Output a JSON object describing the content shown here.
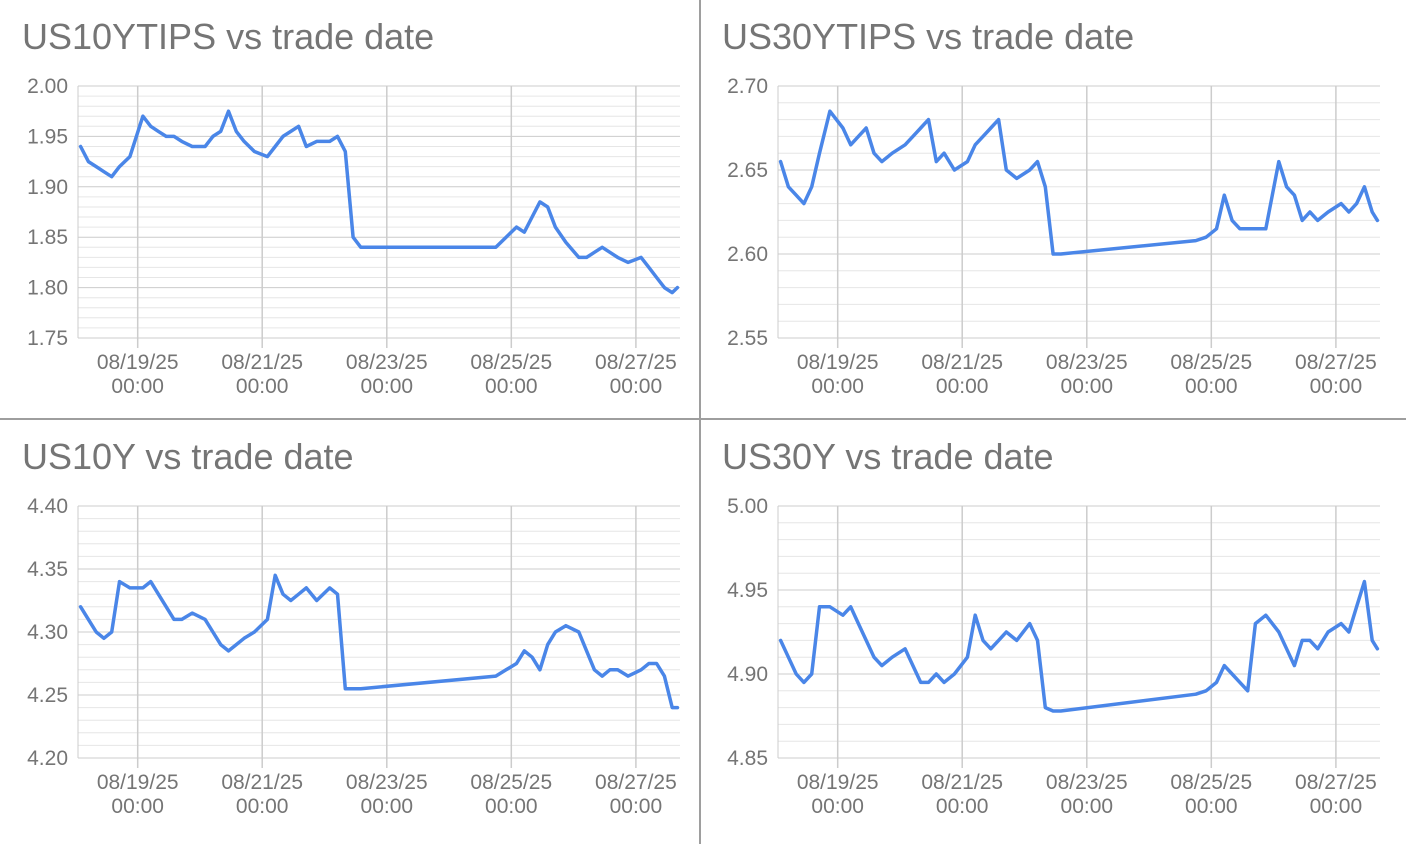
{
  "theme": {
    "line_color": "#4a86e8",
    "grid_major": "#cccccc",
    "grid_minor": "#e6e6e6",
    "text_color": "#757575",
    "divider": "#9e9e9e"
  },
  "chart_data": [
    {
      "type": "line",
      "title": "US10YTIPS vs trade date",
      "xlabel": "",
      "ylabel": "",
      "ylim": [
        1.75,
        2.0
      ],
      "yticks": [
        "2.00",
        "1.95",
        "1.90",
        "1.85",
        "1.80",
        "1.75"
      ],
      "xticks": [
        {
          "date": "08/19/25",
          "time": "00:00"
        },
        {
          "date": "08/21/25",
          "time": "00:00"
        },
        {
          "date": "08/23/25",
          "time": "00:00"
        },
        {
          "date": "08/25/25",
          "time": "00:00"
        },
        {
          "date": "08/27/25",
          "time": "00:00"
        }
      ],
      "xlim": [
        "08/18/25 01:00",
        "08/27/25 17:00"
      ],
      "grid": true,
      "series": [
        {
          "x": [
            "08/18/25 02:00",
            "08/18/25 05:00",
            "08/18/25 08:00",
            "08/18/25 11:00",
            "08/18/25 14:00",
            "08/18/25 17:00",
            "08/18/25 21:00",
            "08/19/25 02:00",
            "08/19/25 05:00",
            "08/19/25 08:00",
            "08/19/25 11:00",
            "08/19/25 14:00",
            "08/19/25 17:00",
            "08/19/25 21:00",
            "08/20/25 02:00",
            "08/20/25 05:00",
            "08/20/25 08:00",
            "08/20/25 11:00",
            "08/20/25 14:00",
            "08/20/25 17:00",
            "08/20/25 21:00",
            "08/21/25 02:00",
            "08/21/25 05:00",
            "08/21/25 08:00",
            "08/21/25 11:00",
            "08/21/25 14:00",
            "08/21/25 17:00",
            "08/21/25 21:00",
            "08/22/25 02:00",
            "08/22/25 05:00",
            "08/22/25 08:00",
            "08/22/25 11:00",
            "08/22/25 14:00",
            "08/24/25 18:00",
            "08/24/25 22:00",
            "08/25/25 02:00",
            "08/25/25 05:00",
            "08/25/25 08:00",
            "08/25/25 11:00",
            "08/25/25 14:00",
            "08/25/25 17:00",
            "08/25/25 21:00",
            "08/26/25 02:00",
            "08/26/25 05:00",
            "08/26/25 08:00",
            "08/26/25 11:00",
            "08/26/25 14:00",
            "08/26/25 17:00",
            "08/26/25 21:00",
            "08/27/25 02:00",
            "08/27/25 05:00",
            "08/27/25 08:00",
            "08/27/25 11:00",
            "08/27/25 14:00",
            "08/27/25 16:00"
          ],
          "values": [
            1.94,
            1.925,
            1.92,
            1.915,
            1.91,
            1.92,
            1.93,
            1.97,
            1.96,
            1.955,
            1.95,
            1.95,
            1.945,
            1.94,
            1.94,
            1.95,
            1.955,
            1.975,
            1.955,
            1.945,
            1.935,
            1.93,
            1.94,
            1.95,
            1.955,
            1.96,
            1.94,
            1.945,
            1.945,
            1.95,
            1.935,
            1.85,
            1.84,
            1.84,
            1.85,
            1.86,
            1.855,
            1.87,
            1.885,
            1.88,
            1.86,
            1.845,
            1.83,
            1.83,
            1.835,
            1.84,
            1.835,
            1.83,
            1.825,
            1.83,
            1.82,
            1.81,
            1.8,
            1.795,
            1.8
          ]
        }
      ]
    },
    {
      "type": "line",
      "title": "US30YTIPS vs trade date",
      "xlabel": "",
      "ylabel": "",
      "ylim": [
        2.55,
        2.7
      ],
      "yticks": [
        "2.70",
        "2.65",
        "2.60",
        "2.55"
      ],
      "xticks": [
        {
          "date": "08/19/25",
          "time": "00:00"
        },
        {
          "date": "08/21/25",
          "time": "00:00"
        },
        {
          "date": "08/23/25",
          "time": "00:00"
        },
        {
          "date": "08/25/25",
          "time": "00:00"
        },
        {
          "date": "08/27/25",
          "time": "00:00"
        }
      ],
      "xlim": [
        "08/18/25 01:00",
        "08/27/25 17:00"
      ],
      "grid": true,
      "series": [
        {
          "x": [
            "08/18/25 02:00",
            "08/18/25 05:00",
            "08/18/25 08:00",
            "08/18/25 11:00",
            "08/18/25 14:00",
            "08/18/25 17:00",
            "08/18/25 21:00",
            "08/19/25 02:00",
            "08/19/25 05:00",
            "08/19/25 08:00",
            "08/19/25 11:00",
            "08/19/25 14:00",
            "08/19/25 17:00",
            "08/19/25 21:00",
            "08/20/25 02:00",
            "08/20/25 05:00",
            "08/20/25 08:00",
            "08/20/25 11:00",
            "08/20/25 14:00",
            "08/20/25 17:00",
            "08/20/25 21:00",
            "08/21/25 02:00",
            "08/21/25 05:00",
            "08/21/25 08:00",
            "08/21/25 11:00",
            "08/21/25 14:00",
            "08/21/25 17:00",
            "08/21/25 21:00",
            "08/22/25 02:00",
            "08/22/25 05:00",
            "08/22/25 08:00",
            "08/22/25 11:00",
            "08/22/25 14:00",
            "08/24/25 18:00",
            "08/24/25 22:00",
            "08/25/25 02:00",
            "08/25/25 05:00",
            "08/25/25 08:00",
            "08/25/25 11:00",
            "08/25/25 14:00",
            "08/25/25 17:00",
            "08/25/25 21:00",
            "08/26/25 02:00",
            "08/26/25 05:00",
            "08/26/25 08:00",
            "08/26/25 11:00",
            "08/26/25 14:00",
            "08/26/25 17:00",
            "08/26/25 21:00",
            "08/27/25 02:00",
            "08/27/25 05:00",
            "08/27/25 08:00",
            "08/27/25 11:00",
            "08/27/25 14:00",
            "08/27/25 16:00"
          ],
          "values": [
            2.655,
            2.64,
            2.635,
            2.63,
            2.64,
            2.66,
            2.685,
            2.675,
            2.665,
            2.67,
            2.675,
            2.66,
            2.655,
            2.66,
            2.665,
            2.67,
            2.675,
            2.68,
            2.655,
            2.66,
            2.65,
            2.655,
            2.665,
            2.67,
            2.675,
            2.68,
            2.65,
            2.645,
            2.65,
            2.655,
            2.64,
            2.6,
            2.6,
            2.608,
            2.61,
            2.615,
            2.635,
            2.62,
            2.615,
            2.615,
            2.615,
            2.615,
            2.655,
            2.64,
            2.635,
            2.62,
            2.625,
            2.62,
            2.625,
            2.63,
            2.625,
            2.63,
            2.64,
            2.625,
            2.62
          ]
        }
      ]
    },
    {
      "type": "line",
      "title": "US10Y vs trade date",
      "xlabel": "",
      "ylabel": "",
      "ylim": [
        4.2,
        4.4
      ],
      "yticks": [
        "4.40",
        "4.35",
        "4.30",
        "4.25",
        "4.20"
      ],
      "xticks": [
        {
          "date": "08/19/25",
          "time": "00:00"
        },
        {
          "date": "08/21/25",
          "time": "00:00"
        },
        {
          "date": "08/23/25",
          "time": "00:00"
        },
        {
          "date": "08/25/25",
          "time": "00:00"
        },
        {
          "date": "08/27/25",
          "time": "00:00"
        }
      ],
      "xlim": [
        "08/18/25 01:00",
        "08/27/25 17:00"
      ],
      "grid": true,
      "series": [
        {
          "x": [
            "08/18/25 02:00",
            "08/18/25 05:00",
            "08/18/25 08:00",
            "08/18/25 11:00",
            "08/18/25 14:00",
            "08/18/25 17:00",
            "08/18/25 21:00",
            "08/19/25 02:00",
            "08/19/25 05:00",
            "08/19/25 08:00",
            "08/19/25 11:00",
            "08/19/25 14:00",
            "08/19/25 17:00",
            "08/19/25 21:00",
            "08/20/25 02:00",
            "08/20/25 05:00",
            "08/20/25 08:00",
            "08/20/25 11:00",
            "08/20/25 14:00",
            "08/20/25 17:00",
            "08/20/25 21:00",
            "08/21/25 02:00",
            "08/21/25 05:00",
            "08/21/25 08:00",
            "08/21/25 11:00",
            "08/21/25 14:00",
            "08/21/25 17:00",
            "08/21/25 21:00",
            "08/22/25 02:00",
            "08/22/25 05:00",
            "08/22/25 08:00",
            "08/22/25 11:00",
            "08/22/25 14:00",
            "08/24/25 18:00",
            "08/24/25 22:00",
            "08/25/25 02:00",
            "08/25/25 05:00",
            "08/25/25 08:00",
            "08/25/25 11:00",
            "08/25/25 14:00",
            "08/25/25 17:00",
            "08/25/25 21:00",
            "08/26/25 02:00",
            "08/26/25 05:00",
            "08/26/25 08:00",
            "08/26/25 11:00",
            "08/26/25 14:00",
            "08/26/25 17:00",
            "08/26/25 21:00",
            "08/27/25 02:00",
            "08/27/25 05:00",
            "08/27/25 08:00",
            "08/27/25 11:00",
            "08/27/25 14:00",
            "08/27/25 16:00"
          ],
          "values": [
            4.32,
            4.31,
            4.3,
            4.295,
            4.3,
            4.34,
            4.335,
            4.335,
            4.34,
            4.33,
            4.32,
            4.31,
            4.31,
            4.315,
            4.31,
            4.3,
            4.29,
            4.285,
            4.29,
            4.295,
            4.3,
            4.31,
            4.345,
            4.33,
            4.325,
            4.33,
            4.335,
            4.325,
            4.335,
            4.33,
            4.255,
            4.255,
            4.255,
            4.265,
            4.27,
            4.275,
            4.285,
            4.28,
            4.27,
            4.29,
            4.3,
            4.305,
            4.3,
            4.285,
            4.27,
            4.265,
            4.27,
            4.27,
            4.265,
            4.27,
            4.275,
            4.275,
            4.265,
            4.24,
            4.24
          ]
        }
      ]
    },
    {
      "type": "line",
      "title": "US30Y vs trade date",
      "xlabel": "",
      "ylabel": "",
      "ylim": [
        4.85,
        5.0
      ],
      "yticks": [
        "5.00",
        "4.95",
        "4.90",
        "4.85"
      ],
      "xticks": [
        {
          "date": "08/19/25",
          "time": "00:00"
        },
        {
          "date": "08/21/25",
          "time": "00:00"
        },
        {
          "date": "08/23/25",
          "time": "00:00"
        },
        {
          "date": "08/25/25",
          "time": "00:00"
        },
        {
          "date": "08/27/25",
          "time": "00:00"
        }
      ],
      "xlim": [
        "08/18/25 01:00",
        "08/27/25 17:00"
      ],
      "grid": true,
      "series": [
        {
          "x": [
            "08/18/25 02:00",
            "08/18/25 05:00",
            "08/18/25 08:00",
            "08/18/25 11:00",
            "08/18/25 14:00",
            "08/18/25 17:00",
            "08/18/25 21:00",
            "08/19/25 02:00",
            "08/19/25 05:00",
            "08/19/25 08:00",
            "08/19/25 11:00",
            "08/19/25 14:00",
            "08/19/25 17:00",
            "08/19/25 21:00",
            "08/20/25 02:00",
            "08/20/25 05:00",
            "08/20/25 08:00",
            "08/20/25 11:00",
            "08/20/25 14:00",
            "08/20/25 17:00",
            "08/20/25 21:00",
            "08/21/25 02:00",
            "08/21/25 05:00",
            "08/21/25 08:00",
            "08/21/25 11:00",
            "08/21/25 14:00",
            "08/21/25 17:00",
            "08/21/25 21:00",
            "08/22/25 02:00",
            "08/22/25 05:00",
            "08/22/25 08:00",
            "08/22/25 11:00",
            "08/22/25 14:00",
            "08/24/25 18:00",
            "08/24/25 22:00",
            "08/25/25 02:00",
            "08/25/25 05:00",
            "08/25/25 08:00",
            "08/25/25 11:00",
            "08/25/25 14:00",
            "08/25/25 17:00",
            "08/25/25 21:00",
            "08/26/25 02:00",
            "08/26/25 05:00",
            "08/26/25 08:00",
            "08/26/25 11:00",
            "08/26/25 14:00",
            "08/26/25 17:00",
            "08/26/25 21:00",
            "08/27/25 02:00",
            "08/27/25 05:00",
            "08/27/25 08:00",
            "08/27/25 11:00",
            "08/27/25 14:00",
            "08/27/25 16:00"
          ],
          "values": [
            4.92,
            4.91,
            4.9,
            4.895,
            4.9,
            4.94,
            4.94,
            4.935,
            4.94,
            4.93,
            4.92,
            4.91,
            4.905,
            4.91,
            4.915,
            4.905,
            4.895,
            4.895,
            4.9,
            4.895,
            4.9,
            4.91,
            4.935,
            4.92,
            4.915,
            4.92,
            4.925,
            4.92,
            4.93,
            4.92,
            4.88,
            4.878,
            4.878,
            4.888,
            4.89,
            4.895,
            4.905,
            4.9,
            4.895,
            4.89,
            4.93,
            4.935,
            4.925,
            4.915,
            4.905,
            4.92,
            4.92,
            4.915,
            4.925,
            4.93,
            4.925,
            4.94,
            4.955,
            4.92,
            4.915
          ]
        }
      ]
    }
  ]
}
